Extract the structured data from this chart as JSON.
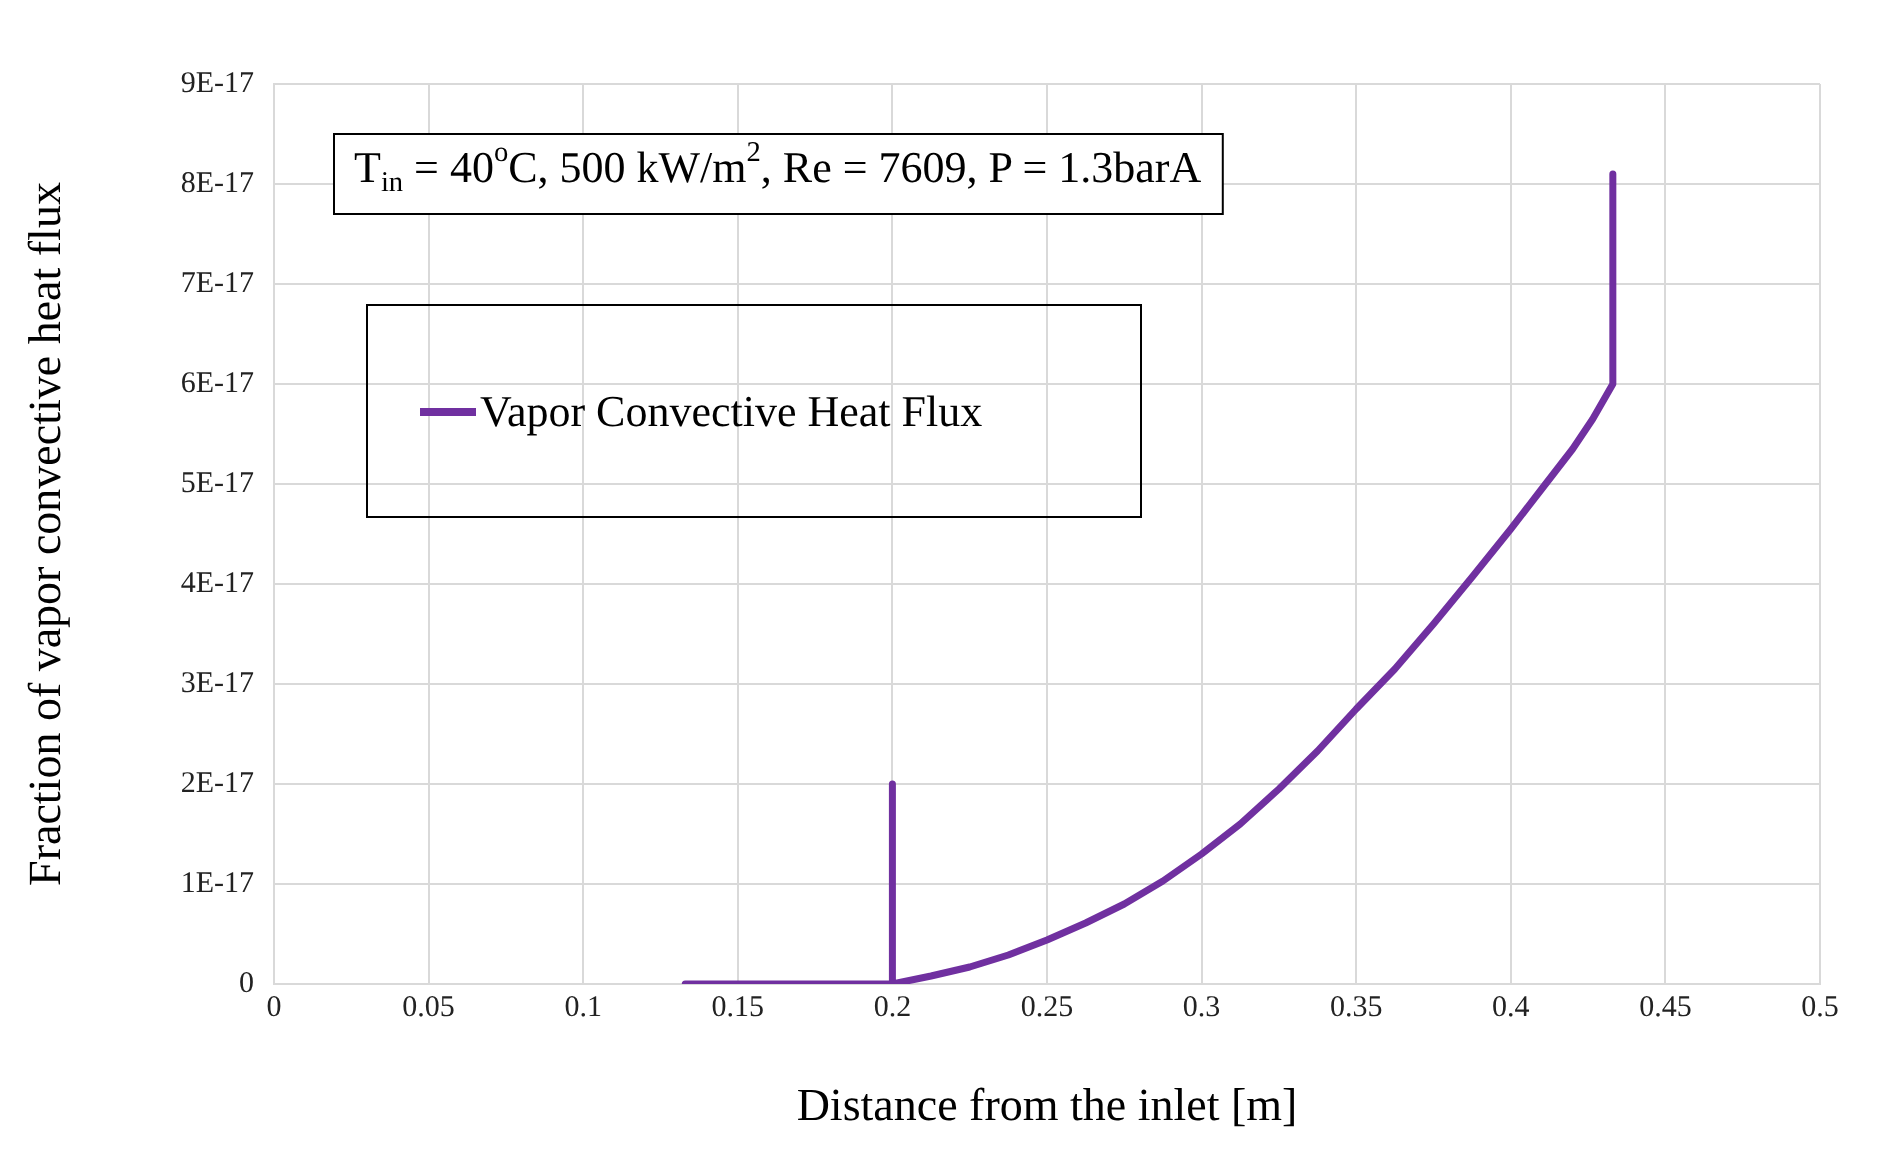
{
  "chart_data": {
    "type": "line",
    "xlabel": "Distance from the inlet [m]",
    "ylabel": "Fraction of vapor convective heat flux",
    "annotations": [
      "T$_{in}$ = 40$^{o}$C, 500 kW/m$^{2}$, Re = 7609, P = 1.3barA"
    ],
    "x": [
      0.133,
      0.2,
      0.2,
      0.2,
      0.2125,
      0.225,
      0.2375,
      0.25,
      0.2625,
      0.275,
      0.2875,
      0.3,
      0.3125,
      0.325,
      0.3375,
      0.35,
      0.3625,
      0.375,
      0.3875,
      0.4,
      0.41,
      0.42,
      0.4265,
      0.433,
      0.433
    ],
    "series": [
      {
        "name": "Vapor Convective Heat Flux",
        "color": "#7030a0",
        "values": [
          0,
          0,
          2e-17,
          0,
          8e-19,
          1.7e-18,
          2.9e-18,
          4.4e-18,
          6.1e-18,
          8e-18,
          1.03e-17,
          1.3e-17,
          1.6e-17,
          1.95e-17,
          2.33e-17,
          2.75e-17,
          3.15e-17,
          3.6e-17,
          4.07e-17,
          4.55e-17,
          4.95e-17,
          5.35e-17,
          5.65e-17,
          6e-17,
          8.1e-17
        ]
      }
    ],
    "xlim": [
      0,
      0.5
    ],
    "xticks": [
      0,
      0.05,
      0.1,
      0.15,
      0.2,
      0.25,
      0.3,
      0.35,
      0.4,
      0.45,
      0.5
    ],
    "ylim": [
      0,
      9e-17
    ],
    "yticks": [
      0,
      {
        "value": 1e-17,
        "label": "1E-17"
      },
      {
        "value": 2e-17,
        "label": "2E-17"
      },
      {
        "value": 3e-17,
        "label": "3E-17"
      },
      {
        "value": 4e-17,
        "label": "4E-17"
      },
      {
        "value": 5e-17,
        "label": "5E-17"
      },
      {
        "value": 6e-17,
        "label": "6E-17"
      },
      {
        "value": 7e-17,
        "label": "7E-17"
      },
      {
        "value": 8e-17,
        "label": "8E-17"
      },
      {
        "value": 9e-17,
        "label": "9E-17"
      }
    ],
    "grid": true,
    "legend": "top left",
    "marker": "none",
    "line_style": "solid"
  }
}
